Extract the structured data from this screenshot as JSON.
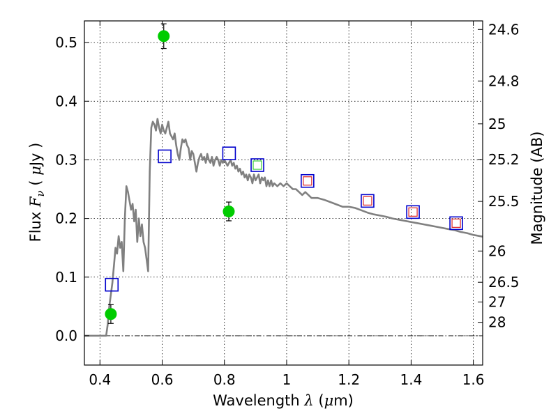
{
  "chart_data": {
    "type": "scatter",
    "title": "",
    "xlabel": "Wavelength  λ (μm)",
    "ylabel": "Flux  F_ν  ( μJy )",
    "ylabel_parts": {
      "a": "Flux  ",
      "b": "F",
      "c": "ν",
      "d": "  ( ",
      "e": "μ",
      "f": "Jy )"
    },
    "xlabel_parts": {
      "a": "Wavelength  ",
      "b": "λ",
      "c": " (",
      "d": "μ",
      "e": "m)"
    },
    "y2label": "Magnitude (AB)",
    "xlim": [
      0.35,
      1.63
    ],
    "ylim": [
      -0.05,
      0.537
    ],
    "grid": true,
    "x_ticks": [
      {
        "value": 0.4,
        "label": "0.4"
      },
      {
        "value": 0.6,
        "label": "0.6"
      },
      {
        "value": 0.8,
        "label": "0.8"
      },
      {
        "value": 1.0,
        "label": "1"
      },
      {
        "value": 1.2,
        "label": "1.2"
      },
      {
        "value": 1.4,
        "label": "1.4"
      },
      {
        "value": 1.6,
        "label": "1.6"
      }
    ],
    "y_ticks": [
      {
        "value": 0.0,
        "label": "0.0"
      },
      {
        "value": 0.1,
        "label": "0.1"
      },
      {
        "value": 0.2,
        "label": "0.2"
      },
      {
        "value": 0.3,
        "label": "0.3"
      },
      {
        "value": 0.4,
        "label": "0.4"
      },
      {
        "value": 0.5,
        "label": "0.5"
      }
    ],
    "y2_ticks": [
      {
        "flux": 0.5224,
        "label": "24.6"
      },
      {
        "flux": 0.4345,
        "label": "24.8"
      },
      {
        "flux": 0.3614,
        "label": "25"
      },
      {
        "flux": 0.3006,
        "label": "25.2"
      },
      {
        "flux": 0.2291,
        "label": "25.5"
      },
      {
        "flux": 0.1445,
        "label": "26"
      },
      {
        "flux": 0.0912,
        "label": "26.5"
      },
      {
        "flux": 0.0575,
        "label": "27"
      },
      {
        "flux": 0.0229,
        "label": "28"
      }
    ],
    "zero_line": 0.0,
    "series": [
      {
        "kind": "model_sed_line",
        "color": "#808080",
        "points": [
          [
            0.35,
            0.0
          ],
          [
            0.42,
            0.0
          ],
          [
            0.425,
            0.02
          ],
          [
            0.43,
            0.05
          ],
          [
            0.435,
            0.07
          ],
          [
            0.44,
            0.09
          ],
          [
            0.445,
            0.12
          ],
          [
            0.45,
            0.15
          ],
          [
            0.455,
            0.14
          ],
          [
            0.46,
            0.17
          ],
          [
            0.465,
            0.15
          ],
          [
            0.47,
            0.16
          ],
          [
            0.475,
            0.11
          ],
          [
            0.48,
            0.2
          ],
          [
            0.485,
            0.255
          ],
          [
            0.49,
            0.245
          ],
          [
            0.495,
            0.23
          ],
          [
            0.5,
            0.215
          ],
          [
            0.505,
            0.225
          ],
          [
            0.51,
            0.195
          ],
          [
            0.515,
            0.215
          ],
          [
            0.52,
            0.16
          ],
          [
            0.525,
            0.2
          ],
          [
            0.53,
            0.17
          ],
          [
            0.535,
            0.19
          ],
          [
            0.54,
            0.16
          ],
          [
            0.545,
            0.15
          ],
          [
            0.55,
            0.13
          ],
          [
            0.555,
            0.11
          ],
          [
            0.56,
            0.28
          ],
          [
            0.565,
            0.355
          ],
          [
            0.57,
            0.365
          ],
          [
            0.575,
            0.36
          ],
          [
            0.58,
            0.35
          ],
          [
            0.585,
            0.37
          ],
          [
            0.59,
            0.355
          ],
          [
            0.595,
            0.345
          ],
          [
            0.6,
            0.36
          ],
          [
            0.605,
            0.35
          ],
          [
            0.61,
            0.345
          ],
          [
            0.615,
            0.355
          ],
          [
            0.62,
            0.365
          ],
          [
            0.625,
            0.345
          ],
          [
            0.63,
            0.34
          ],
          [
            0.635,
            0.335
          ],
          [
            0.64,
            0.345
          ],
          [
            0.645,
            0.325
          ],
          [
            0.65,
            0.31
          ],
          [
            0.655,
            0.3
          ],
          [
            0.66,
            0.32
          ],
          [
            0.665,
            0.335
          ],
          [
            0.67,
            0.33
          ],
          [
            0.675,
            0.335
          ],
          [
            0.68,
            0.325
          ],
          [
            0.685,
            0.32
          ],
          [
            0.69,
            0.3
          ],
          [
            0.695,
            0.315
          ],
          [
            0.7,
            0.31
          ],
          [
            0.705,
            0.295
          ],
          [
            0.71,
            0.28
          ],
          [
            0.715,
            0.295
          ],
          [
            0.72,
            0.305
          ],
          [
            0.725,
            0.31
          ],
          [
            0.73,
            0.3
          ],
          [
            0.735,
            0.305
          ],
          [
            0.74,
            0.295
          ],
          [
            0.745,
            0.31
          ],
          [
            0.75,
            0.3
          ],
          [
            0.755,
            0.295
          ],
          [
            0.76,
            0.305
          ],
          [
            0.765,
            0.29
          ],
          [
            0.77,
            0.3
          ],
          [
            0.775,
            0.305
          ],
          [
            0.78,
            0.3
          ],
          [
            0.785,
            0.29
          ],
          [
            0.79,
            0.3
          ],
          [
            0.795,
            0.295
          ],
          [
            0.8,
            0.3
          ],
          [
            0.805,
            0.295
          ],
          [
            0.81,
            0.29
          ],
          [
            0.815,
            0.295
          ],
          [
            0.82,
            0.3
          ],
          [
            0.825,
            0.29
          ],
          [
            0.83,
            0.295
          ],
          [
            0.835,
            0.285
          ],
          [
            0.84,
            0.29
          ],
          [
            0.845,
            0.28
          ],
          [
            0.85,
            0.285
          ],
          [
            0.855,
            0.275
          ],
          [
            0.86,
            0.28
          ],
          [
            0.865,
            0.27
          ],
          [
            0.87,
            0.275
          ],
          [
            0.875,
            0.265
          ],
          [
            0.88,
            0.275
          ],
          [
            0.885,
            0.27
          ],
          [
            0.89,
            0.26
          ],
          [
            0.895,
            0.275
          ],
          [
            0.9,
            0.265
          ],
          [
            0.905,
            0.27
          ],
          [
            0.91,
            0.275
          ],
          [
            0.915,
            0.26
          ],
          [
            0.92,
            0.27
          ],
          [
            0.925,
            0.265
          ],
          [
            0.93,
            0.27
          ],
          [
            0.935,
            0.255
          ],
          [
            0.94,
            0.265
          ],
          [
            0.945,
            0.255
          ],
          [
            0.95,
            0.265
          ],
          [
            0.955,
            0.255
          ],
          [
            0.96,
            0.26
          ],
          [
            0.97,
            0.255
          ],
          [
            0.98,
            0.26
          ],
          [
            0.99,
            0.255
          ],
          [
            1.0,
            0.26
          ],
          [
            1.01,
            0.255
          ],
          [
            1.02,
            0.25
          ],
          [
            1.03,
            0.25
          ],
          [
            1.04,
            0.245
          ],
          [
            1.05,
            0.24
          ],
          [
            1.06,
            0.245
          ],
          [
            1.07,
            0.24
          ],
          [
            1.08,
            0.235
          ],
          [
            1.1,
            0.235
          ],
          [
            1.12,
            0.232
          ],
          [
            1.14,
            0.228
          ],
          [
            1.16,
            0.224
          ],
          [
            1.18,
            0.22
          ],
          [
            1.2,
            0.22
          ],
          [
            1.22,
            0.218
          ],
          [
            1.24,
            0.214
          ],
          [
            1.26,
            0.21
          ],
          [
            1.28,
            0.207
          ],
          [
            1.3,
            0.205
          ],
          [
            1.32,
            0.203
          ],
          [
            1.34,
            0.2
          ],
          [
            1.36,
            0.198
          ],
          [
            1.38,
            0.196
          ],
          [
            1.4,
            0.194
          ],
          [
            1.42,
            0.192
          ],
          [
            1.44,
            0.19
          ],
          [
            1.46,
            0.188
          ],
          [
            1.48,
            0.186
          ],
          [
            1.5,
            0.184
          ],
          [
            1.52,
            0.182
          ],
          [
            1.54,
            0.18
          ],
          [
            1.56,
            0.177
          ],
          [
            1.58,
            0.175
          ],
          [
            1.6,
            0.172
          ],
          [
            1.63,
            0.169
          ]
        ]
      },
      {
        "kind": "blue_squares",
        "color": "#0000cc",
        "points": [
          [
            0.438,
            0.087
          ],
          [
            0.608,
            0.306
          ],
          [
            0.815,
            0.311
          ],
          [
            0.906,
            0.291
          ],
          [
            1.067,
            0.264
          ],
          [
            1.26,
            0.23
          ],
          [
            1.406,
            0.211
          ],
          [
            1.545,
            0.192
          ]
        ]
      },
      {
        "kind": "inner_red_squares",
        "color": "#dd2222",
        "points": [
          [
            1.067,
            0.264
          ],
          [
            1.26,
            0.23
          ],
          [
            1.406,
            0.211
          ],
          [
            1.545,
            0.192
          ]
        ]
      },
      {
        "kind": "inner_green_square",
        "color": "#33cc33",
        "points": [
          [
            0.906,
            0.291
          ]
        ]
      },
      {
        "kind": "green_circles_with_errors",
        "color": "#00cc00",
        "points": [
          {
            "x": 0.435,
            "y": 0.037,
            "err": 0.016
          },
          {
            "x": 0.605,
            "y": 0.511,
            "err": 0.021
          },
          {
            "x": 0.814,
            "y": 0.212,
            "err": 0.016
          }
        ]
      }
    ]
  }
}
